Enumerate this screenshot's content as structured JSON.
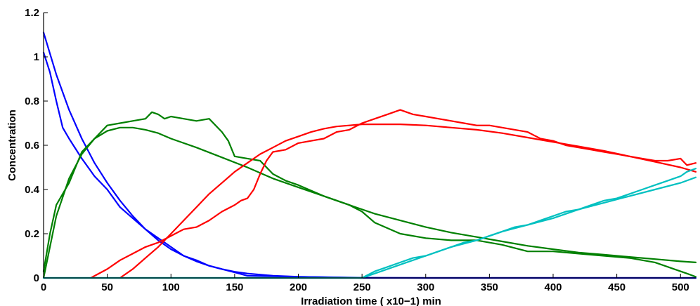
{
  "chart_data": {
    "type": "line",
    "title": "",
    "xlabel": "Irradiation time ( x10−1) min",
    "ylabel": "Concentration",
    "xlim": [
      0,
      512
    ],
    "ylim": [
      0,
      1.2
    ],
    "xticks": [
      0,
      50,
      100,
      150,
      200,
      250,
      300,
      350,
      400,
      450,
      500
    ],
    "yticks": [
      0,
      0.2,
      0.4,
      0.6,
      0.8,
      1,
      1.2
    ],
    "ytick_labels": [
      "0",
      "0.2",
      "0.4",
      "0.6",
      "0.8",
      "1",
      "1.2"
    ],
    "grid": false,
    "legend": "none",
    "series": [
      {
        "key": "blue_measured",
        "color": "#0000ff",
        "x": [
          0,
          5,
          10,
          15,
          20,
          30,
          40,
          50,
          60,
          70,
          80,
          90,
          100,
          110,
          120,
          130,
          140,
          150,
          160,
          200,
          250,
          300,
          400,
          512
        ],
        "y": [
          1.02,
          0.93,
          0.8,
          0.68,
          0.63,
          0.54,
          0.46,
          0.4,
          0.32,
          0.27,
          0.22,
          0.18,
          0.14,
          0.1,
          0.08,
          0.055,
          0.04,
          0.025,
          0.01,
          0.005,
          0.0,
          0.0,
          0.0,
          0.0
        ]
      },
      {
        "key": "blue_fit",
        "color": "#0000ff",
        "x": [
          0,
          10,
          20,
          30,
          40,
          50,
          60,
          70,
          80,
          90,
          100,
          110,
          120,
          130,
          140,
          150,
          160,
          180,
          200,
          250,
          300,
          400,
          512
        ],
        "y": [
          1.11,
          0.92,
          0.76,
          0.63,
          0.52,
          0.43,
          0.35,
          0.28,
          0.22,
          0.17,
          0.13,
          0.1,
          0.075,
          0.055,
          0.04,
          0.028,
          0.02,
          0.01,
          0.005,
          0.001,
          0.0,
          0.0,
          0.0
        ]
      },
      {
        "key": "green_measured",
        "color": "#008000",
        "x": [
          0,
          5,
          10,
          20,
          30,
          40,
          50,
          60,
          70,
          80,
          85,
          90,
          95,
          100,
          110,
          120,
          130,
          140,
          145,
          150,
          160,
          170,
          180,
          190,
          200,
          220,
          240,
          250,
          260,
          280,
          300,
          320,
          340,
          360,
          380,
          400,
          420,
          440,
          460,
          480,
          495,
          505,
          512
        ],
        "y": [
          0.03,
          0.2,
          0.33,
          0.43,
          0.57,
          0.63,
          0.69,
          0.7,
          0.71,
          0.72,
          0.75,
          0.74,
          0.72,
          0.73,
          0.72,
          0.71,
          0.72,
          0.66,
          0.62,
          0.55,
          0.54,
          0.53,
          0.47,
          0.44,
          0.42,
          0.37,
          0.33,
          0.3,
          0.25,
          0.2,
          0.18,
          0.17,
          0.17,
          0.15,
          0.12,
          0.12,
          0.11,
          0.1,
          0.09,
          0.07,
          0.04,
          0.02,
          0.005
        ]
      },
      {
        "key": "green_fit",
        "color": "#008000",
        "x": [
          0,
          10,
          20,
          30,
          40,
          50,
          60,
          70,
          80,
          90,
          100,
          120,
          140,
          160,
          180,
          200,
          220,
          240,
          260,
          280,
          300,
          320,
          340,
          360,
          380,
          400,
          420,
          440,
          460,
          480,
          500,
          512
        ],
        "y": [
          0.0,
          0.28,
          0.45,
          0.56,
          0.63,
          0.665,
          0.68,
          0.68,
          0.67,
          0.655,
          0.63,
          0.59,
          0.545,
          0.5,
          0.45,
          0.41,
          0.37,
          0.33,
          0.29,
          0.26,
          0.23,
          0.205,
          0.185,
          0.165,
          0.145,
          0.13,
          0.115,
          0.105,
          0.095,
          0.085,
          0.075,
          0.07
        ]
      },
      {
        "key": "red_measured",
        "color": "#ff0000",
        "x": [
          37,
          50,
          60,
          70,
          80,
          90,
          100,
          110,
          120,
          130,
          140,
          150,
          155,
          160,
          165,
          170,
          175,
          180,
          190,
          200,
          210,
          220,
          230,
          240,
          250,
          260,
          270,
          280,
          290,
          300,
          310,
          320,
          330,
          340,
          350,
          360,
          370,
          380,
          390,
          400,
          410,
          420,
          430,
          440,
          450,
          460,
          470,
          480,
          490,
          500,
          505,
          512
        ],
        "y": [
          0.0,
          0.04,
          0.08,
          0.11,
          0.14,
          0.16,
          0.19,
          0.22,
          0.23,
          0.26,
          0.3,
          0.33,
          0.35,
          0.36,
          0.4,
          0.47,
          0.53,
          0.57,
          0.58,
          0.61,
          0.62,
          0.63,
          0.66,
          0.67,
          0.7,
          0.72,
          0.74,
          0.76,
          0.74,
          0.73,
          0.72,
          0.71,
          0.7,
          0.69,
          0.69,
          0.68,
          0.67,
          0.66,
          0.63,
          0.62,
          0.6,
          0.59,
          0.58,
          0.57,
          0.56,
          0.55,
          0.54,
          0.53,
          0.53,
          0.54,
          0.51,
          0.52
        ]
      },
      {
        "key": "red_fit",
        "color": "#ff0000",
        "x": [
          60,
          70,
          80,
          90,
          100,
          110,
          120,
          130,
          140,
          150,
          160,
          170,
          180,
          190,
          200,
          210,
          220,
          230,
          240,
          250,
          260,
          270,
          280,
          300,
          320,
          340,
          360,
          380,
          400,
          420,
          440,
          460,
          480,
          500,
          512
        ],
        "y": [
          0.0,
          0.04,
          0.09,
          0.14,
          0.2,
          0.26,
          0.32,
          0.38,
          0.43,
          0.48,
          0.52,
          0.56,
          0.59,
          0.62,
          0.64,
          0.66,
          0.675,
          0.685,
          0.69,
          0.695,
          0.695,
          0.695,
          0.695,
          0.69,
          0.68,
          0.67,
          0.655,
          0.635,
          0.615,
          0.595,
          0.575,
          0.55,
          0.525,
          0.5,
          0.48
        ]
      },
      {
        "key": "cyan_measured",
        "color": "#00c0c0",
        "x": [
          0,
          250,
          260,
          270,
          280,
          290,
          300,
          310,
          320,
          330,
          340,
          350,
          360,
          370,
          380,
          390,
          400,
          410,
          420,
          430,
          440,
          450,
          460,
          470,
          480,
          490,
          500,
          505,
          512
        ],
        "y": [
          0.0,
          0.0,
          0.03,
          0.05,
          0.07,
          0.09,
          0.1,
          0.12,
          0.14,
          0.16,
          0.17,
          0.19,
          0.21,
          0.23,
          0.24,
          0.26,
          0.28,
          0.3,
          0.31,
          0.33,
          0.35,
          0.36,
          0.38,
          0.4,
          0.42,
          0.44,
          0.46,
          0.48,
          0.495
        ]
      },
      {
        "key": "cyan_fit",
        "color": "#00c0c0",
        "x": [
          0,
          250,
          260,
          280,
          300,
          320,
          340,
          360,
          380,
          400,
          420,
          440,
          460,
          480,
          500,
          512
        ],
        "y": [
          0.0,
          0.0,
          0.02,
          0.06,
          0.1,
          0.14,
          0.17,
          0.21,
          0.24,
          0.27,
          0.31,
          0.34,
          0.37,
          0.4,
          0.43,
          0.455
        ]
      }
    ]
  }
}
